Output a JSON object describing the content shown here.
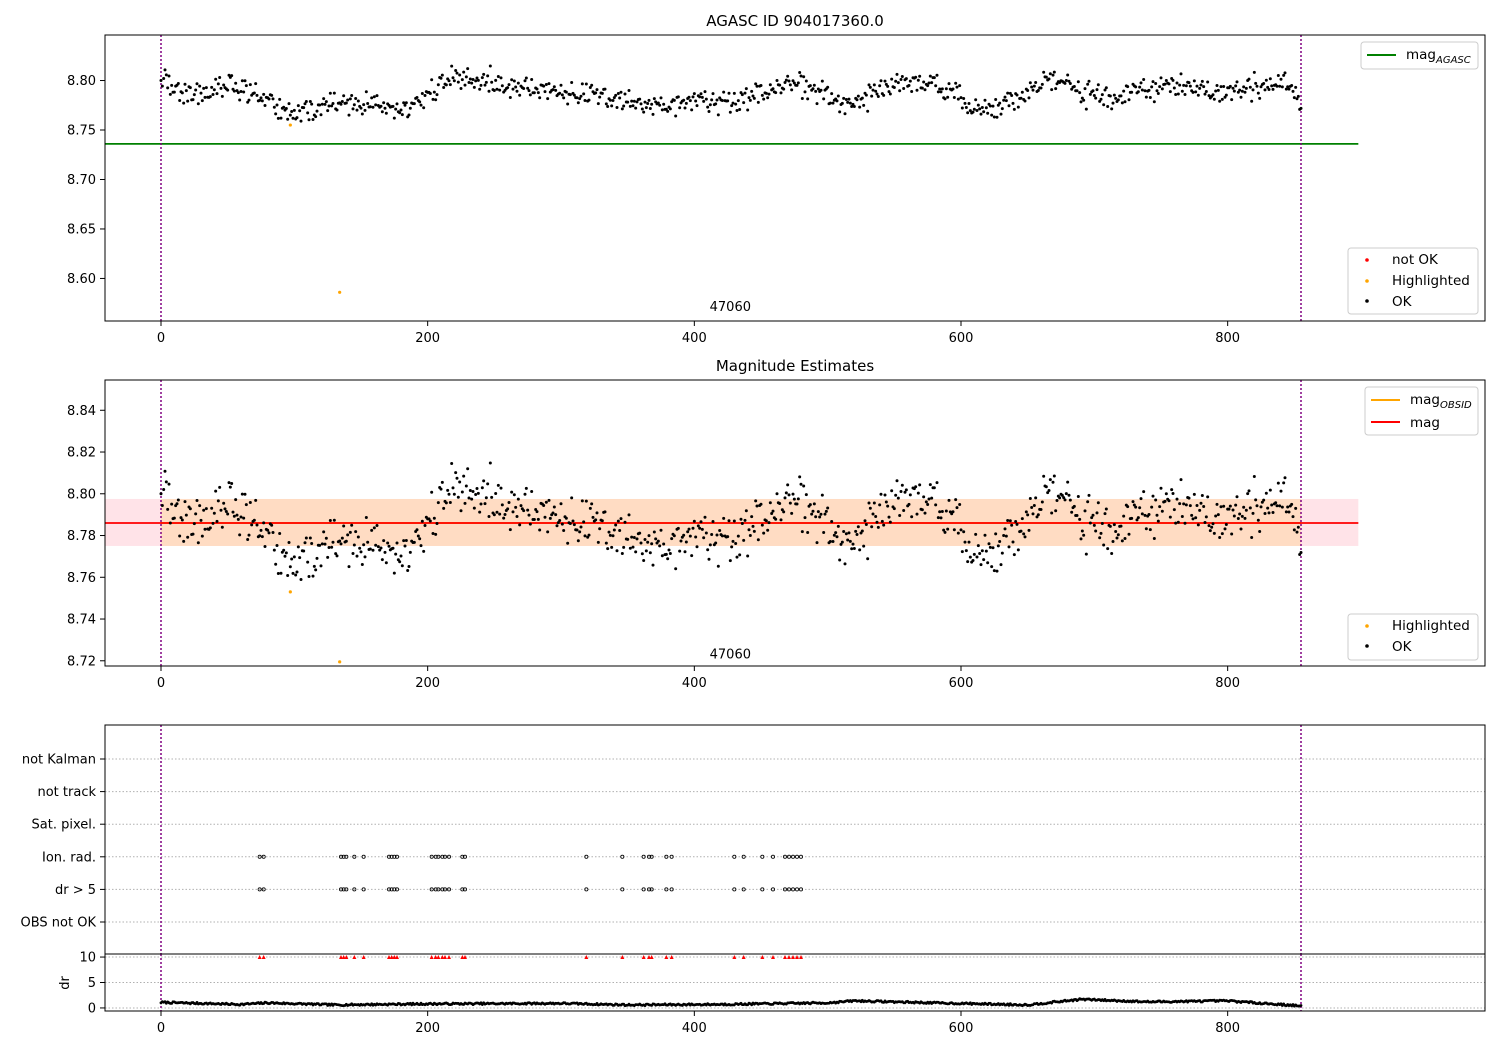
{
  "colors": {
    "ok": "#000000",
    "highlighted": "#ffa500",
    "not_ok": "#ff0000",
    "mag_agasc": "#008000",
    "mag_obsid": "#ffa500",
    "mag": "#ff0000",
    "obs_boundary": "#800080",
    "band_outer": "#ffc0cb",
    "band_inner": "#ffdab9",
    "grid": "#b0b0b0"
  },
  "chart_data": [
    {
      "type": "scatter",
      "title": "AGASC ID 904017360.0",
      "xlim": [
        -42,
        993
      ],
      "ylim": [
        8.557,
        8.846
      ],
      "x_ticks": [
        0,
        200,
        400,
        600,
        800
      ],
      "y_ticks": [
        8.6,
        8.65,
        8.7,
        8.75,
        8.8
      ],
      "y_tick_labels": [
        "8.60",
        "8.65",
        "8.70",
        "8.75",
        "8.80"
      ],
      "obs_boundaries": [
        0,
        855
      ],
      "obsid_labels": [
        {
          "text": "47060",
          "x": 427,
          "y": 8.572
        }
      ],
      "reference_lines": [
        {
          "name": "mag",
          "subscript": "AGASC",
          "y": 8.736,
          "x0": -42,
          "x1": 898
        }
      ],
      "series": [
        {
          "name": "not OK",
          "values": []
        },
        {
          "name": "Highlighted",
          "values": [
            [
              97,
              8.755
            ],
            [
              134,
              8.586
            ]
          ]
        },
        {
          "name": "OK",
          "generated": {
            "n": 856,
            "x0": 0,
            "x1": 855
          }
        }
      ],
      "legends": [
        {
          "position": "upper-right",
          "entries": [
            {
              "name": "mag",
              "subscript": "AGASC",
              "kind": "line",
              "color": "#008000"
            }
          ]
        },
        {
          "position": "lower-right",
          "entries": [
            {
              "name": "not OK",
              "kind": "marker",
              "color": "#ff0000"
            },
            {
              "name": "Highlighted",
              "kind": "marker",
              "color": "#ffa500"
            },
            {
              "name": "OK",
              "kind": "marker",
              "color": "#000000"
            }
          ]
        }
      ]
    },
    {
      "type": "scatter",
      "title": "Magnitude Estimates",
      "xlim": [
        -42,
        993
      ],
      "ylim": [
        8.7175,
        8.8545
      ],
      "x_ticks": [
        0,
        200,
        400,
        600,
        800
      ],
      "y_ticks": [
        8.72,
        8.74,
        8.76,
        8.78,
        8.8,
        8.82,
        8.84
      ],
      "y_tick_labels": [
        "8.72",
        "8.74",
        "8.76",
        "8.78",
        "8.80",
        "8.82",
        "8.84"
      ],
      "obs_boundaries": [
        0,
        855
      ],
      "obsid_labels": [
        {
          "text": "47060",
          "x": 427,
          "y": 8.7235
        }
      ],
      "mag_band": {
        "center": 8.786,
        "outer": [
          8.775,
          8.7975
        ],
        "inner": [
          8.775,
          8.7975
        ],
        "x0": -42,
        "x1": 898
      },
      "reference_lines": [
        {
          "name": "mag",
          "subscript": "OBSID",
          "y": 8.786,
          "color": "#ffa500",
          "x0": 0,
          "x1": 855
        },
        {
          "name": "mag",
          "y": 8.786,
          "color": "#ff0000",
          "x0": -42,
          "x1": 898
        }
      ],
      "series": [
        {
          "name": "Highlighted",
          "values": [
            [
              97,
              8.753
            ],
            [
              134,
              8.7195
            ]
          ]
        },
        {
          "name": "OK",
          "generated": {
            "n": 856,
            "x0": 0,
            "x1": 855
          }
        }
      ],
      "legends": [
        {
          "position": "upper-right",
          "entries": [
            {
              "name": "mag",
              "subscript": "OBSID",
              "kind": "line",
              "color": "#ffa500"
            },
            {
              "name": "mag",
              "kind": "line",
              "color": "#ff0000"
            }
          ]
        },
        {
          "position": "lower-right",
          "entries": [
            {
              "name": "Highlighted",
              "kind": "marker",
              "color": "#ffa500"
            },
            {
              "name": "OK",
              "kind": "marker",
              "color": "#000000"
            }
          ]
        }
      ]
    },
    {
      "type": "scatter",
      "title": "",
      "xlim": [
        -42,
        993
      ],
      "x_ticks": [
        0,
        200,
        400,
        600,
        800
      ],
      "obs_boundaries": [
        0,
        855
      ],
      "flag_rows": [
        "not Kalman",
        "not track",
        "Sat. pixel.",
        "Ion. rad.",
        "dr > 5",
        "OBS not OK"
      ],
      "flag_events": {
        "not Kalman": [],
        "not track": [],
        "Sat. pixel.": [],
        "Ion. rad.": [
          74,
          77,
          135,
          137,
          139,
          145,
          152,
          171,
          173,
          175,
          177,
          203,
          206,
          208,
          211,
          213,
          216,
          226,
          228,
          319,
          346,
          362,
          366,
          368,
          379,
          383,
          430,
          437,
          451,
          459,
          468,
          471,
          474,
          477,
          480
        ],
        "dr > 5": [
          74,
          77,
          135,
          137,
          139,
          145,
          152,
          171,
          173,
          175,
          177,
          203,
          206,
          208,
          211,
          213,
          216,
          226,
          228,
          319,
          346,
          362,
          366,
          368,
          379,
          383,
          430,
          437,
          451,
          459,
          468,
          471,
          474,
          477,
          480
        ],
        "OBS not OK": []
      },
      "dr_panel": {
        "ylabel": "dr",
        "ylim": [
          -0.6,
          10.6
        ],
        "y_ticks": [
          0,
          5,
          10
        ],
        "y_tick_labels": [
          "0",
          "5",
          "10"
        ],
        "clipped_color": "#ff0000",
        "clip_value": 10
      }
    }
  ]
}
